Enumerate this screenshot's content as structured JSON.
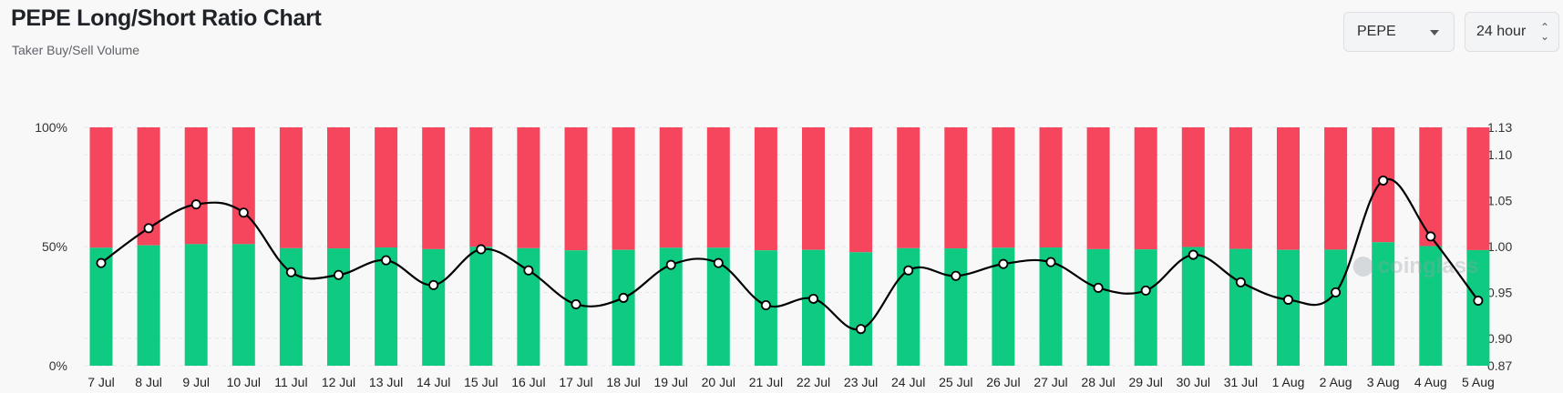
{
  "header": {
    "title": "PEPE Long/Short Ratio Chart",
    "subtitle": "Taker Buy/Sell Volume"
  },
  "controls": {
    "symbol": "PEPE",
    "interval": "24 hour"
  },
  "watermark": "coinglass",
  "colors": {
    "long": "#0ecb81",
    "short": "#f6465d",
    "line": "#000000",
    "grid": "#e4e6ea"
  },
  "chart_data": {
    "type": "bar",
    "categories": [
      "7 Jul",
      "8 Jul",
      "9 Jul",
      "10 Jul",
      "11 Jul",
      "12 Jul",
      "13 Jul",
      "14 Jul",
      "15 Jul",
      "16 Jul",
      "17 Jul",
      "18 Jul",
      "19 Jul",
      "20 Jul",
      "21 Jul",
      "22 Jul",
      "23 Jul",
      "24 Jul",
      "25 Jul",
      "26 Jul",
      "27 Jul",
      "28 Jul",
      "29 Jul",
      "30 Jul",
      "31 Jul",
      "1 Aug",
      "2 Aug",
      "3 Aug",
      "4 Aug",
      "5 Aug"
    ],
    "series": [
      {
        "values": [
          49.5,
          50.5,
          51.0,
          51.0,
          49.3,
          49.2,
          49.6,
          48.9,
          49.9,
          49.3,
          48.4,
          48.6,
          49.5,
          49.5,
          48.4,
          48.6,
          47.6,
          49.3,
          49.2,
          49.5,
          49.6,
          48.9,
          48.8,
          49.8,
          49.0,
          48.6,
          48.7,
          51.8,
          50.2,
          48.5
        ]
      },
      {
        "values": [
          50.5,
          49.5,
          49.0,
          49.0,
          50.7,
          50.8,
          50.4,
          51.1,
          50.1,
          50.7,
          51.6,
          51.4,
          50.5,
          50.5,
          51.6,
          51.4,
          52.4,
          50.7,
          50.8,
          50.5,
          50.4,
          51.1,
          51.2,
          50.2,
          51.0,
          51.4,
          51.3,
          48.2,
          49.8,
          51.5
        ]
      },
      {
        "values": [
          0.982,
          1.02,
          1.046,
          1.037,
          0.972,
          0.969,
          0.985,
          0.958,
          0.997,
          0.974,
          0.937,
          0.944,
          0.98,
          0.982,
          0.936,
          0.943,
          0.91,
          0.974,
          0.968,
          0.981,
          0.983,
          0.955,
          0.952,
          0.991,
          0.961,
          0.942,
          0.95,
          1.072,
          1.011,
          0.941
        ]
      }
    ],
    "y_left": {
      "ticks": [
        "0%",
        "50%",
        "100%"
      ],
      "ylim": [
        0,
        100
      ]
    },
    "y_right": {
      "ticks": [
        "0.87",
        "0.90",
        "0.95",
        "1.00",
        "1.05",
        "1.10",
        "1.13"
      ],
      "ylim": [
        0.87,
        1.13
      ]
    },
    "grid": true
  }
}
